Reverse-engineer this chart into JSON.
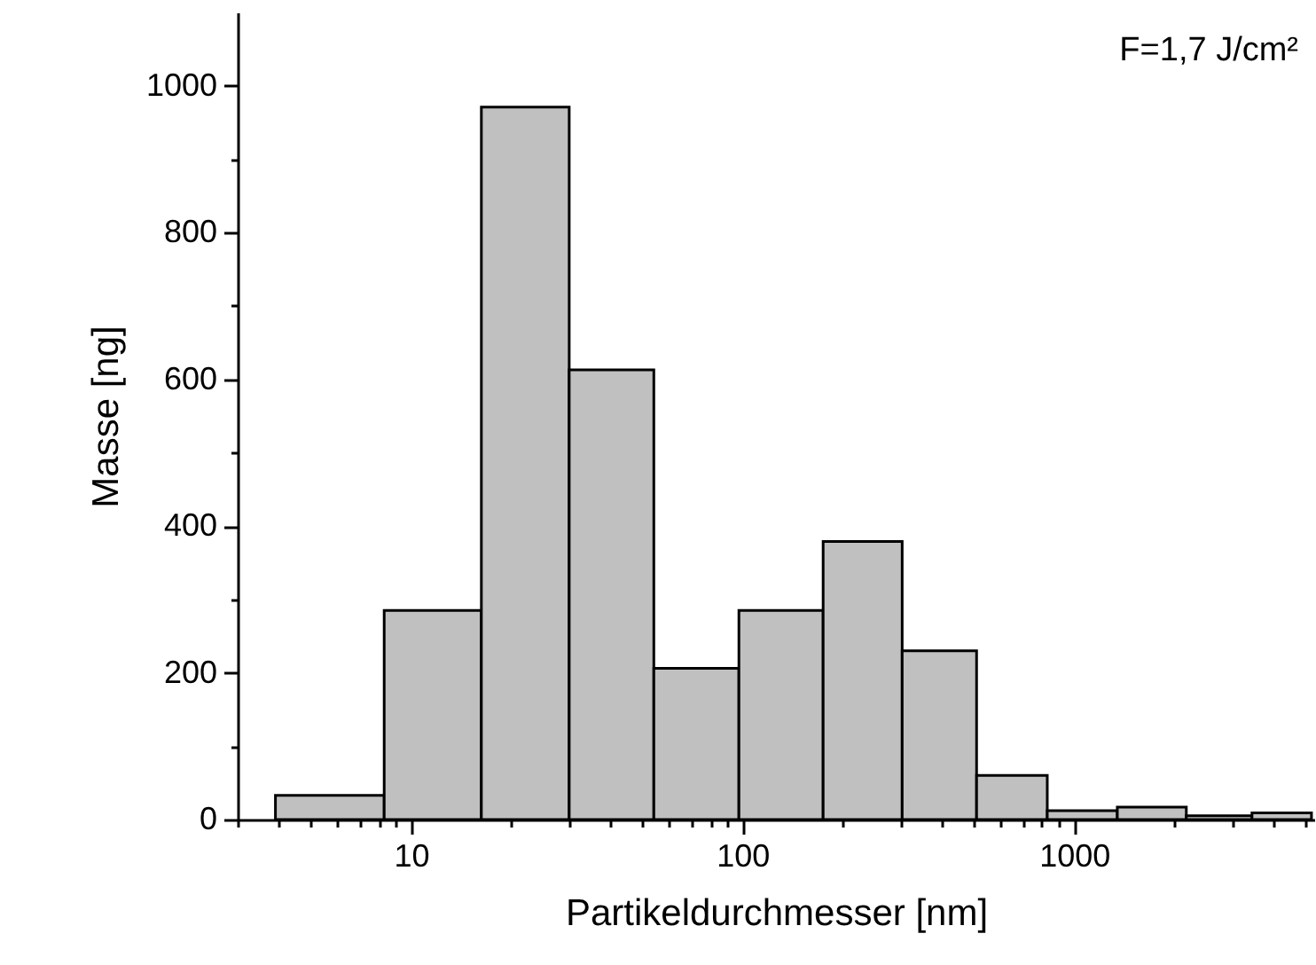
{
  "chart_data": {
    "type": "histogram",
    "xlabel": "Partikeldurchmesser [nm]",
    "ylabel": "Masse [ng]",
    "annotations": [
      "F=1,7 J/cm²"
    ],
    "bins": [
      3.9,
      8.3,
      16.3,
      30,
      54,
      97.5,
      175,
      303,
      508,
      830,
      1350,
      2180,
      3440,
      5200
    ],
    "values": [
      33,
      285,
      971,
      613,
      206,
      285,
      379,
      230,
      60,
      12,
      17,
      5,
      9
    ],
    "color": "#c0c0c0",
    "log": "x",
    "xlim": [
      3,
      5300
    ],
    "xticks": [
      {
        "value": 3,
        "label": null
      },
      {
        "value": 4,
        "label": null
      },
      {
        "value": 5,
        "label": null
      },
      {
        "value": 6,
        "label": null
      },
      {
        "value": 7,
        "label": null
      },
      {
        "value": 8,
        "label": null
      },
      {
        "value": 9,
        "label": null
      },
      10,
      {
        "value": 20,
        "label": null
      },
      {
        "value": 30,
        "label": null
      },
      {
        "value": 40,
        "label": null
      },
      {
        "value": 50,
        "label": null
      },
      {
        "value": 60,
        "label": null
      },
      {
        "value": 70,
        "label": null
      },
      {
        "value": 80,
        "label": null
      },
      {
        "value": 90,
        "label": null
      },
      100,
      {
        "value": 200,
        "label": null
      },
      {
        "value": 300,
        "label": null
      },
      {
        "value": 400,
        "label": null
      },
      {
        "value": 500,
        "label": null
      },
      {
        "value": 600,
        "label": null
      },
      {
        "value": 700,
        "label": null
      },
      {
        "value": 800,
        "label": null
      },
      {
        "value": 900,
        "label": null
      },
      1000,
      {
        "value": 2000,
        "label": null
      },
      {
        "value": 3000,
        "label": null
      },
      {
        "value": 4000,
        "label": null
      },
      {
        "value": 5000,
        "label": null
      }
    ],
    "ylim": [
      0,
      1100
    ],
    "yticks": [
      0,
      {
        "value": 100,
        "label": null
      },
      200,
      {
        "value": 300,
        "label": null
      },
      400,
      {
        "value": 500,
        "label": null
      },
      600,
      {
        "value": 700,
        "label": null
      },
      800,
      {
        "value": 900,
        "label": null
      },
      1000
    ],
    "grid": false
  }
}
